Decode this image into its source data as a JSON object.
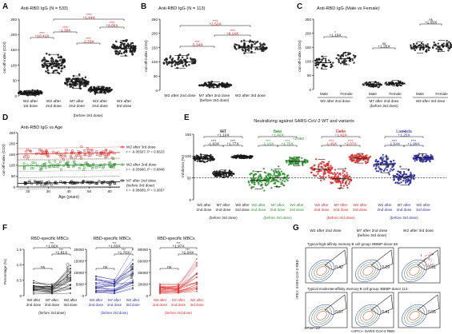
{
  "colors": {
    "black": "#1a1a1a",
    "gray": "#6e6e6e",
    "red": "#d92a2a",
    "green": "#2f8f2f",
    "blue": "#2b2b9a",
    "darkred": "#9c1c1c",
    "sig": "#c01010"
  },
  "panels": {
    "A": {
      "letter": "A",
      "title": "Anti-RBD IgG (N = 533)",
      "ylabel": "cut-off-index (COI)",
      "ticks": [
        "0",
        "50",
        "100",
        "150",
        "200",
        "250"
      ],
      "groups": [
        {
          "label": "W2 after\n1st dose"
        },
        {
          "label": "W2 after\n2nd dose"
        },
        {
          "label": "M7 after\n2nd dose"
        },
        {
          "label": "M7 after\n2nd dose\n(before 3rd dose)"
        },
        {
          "label": "W2 after\n3rd dose"
        }
      ],
      "x_footer": "(before 3rd dose)",
      "stats": [
        {
          "star": "****",
          "fold": "+10.41X"
        },
        {
          "star": "****",
          "fold": "-2.39X"
        },
        {
          "star": "****",
          "fold": "-2.33X"
        },
        {
          "star": "****",
          "fold": "+8.00X"
        },
        {
          "star": "****",
          "fold": "+1.44X"
        }
      ]
    },
    "B": {
      "letter": "B",
      "title": "Anti-RBD IgG (N = 113)",
      "ylabel": "cut-off-index (COI)",
      "ticks": [
        "0",
        "50",
        "100",
        "150",
        "200",
        "250"
      ],
      "groups": [
        {
          "label": "W2 after 2nd dose"
        },
        {
          "label": "M7 after 2nd dose\n(before 3rd dose)"
        },
        {
          "label": "W2 after 3rd dose"
        }
      ],
      "stats": [
        {
          "star": "****",
          "fold": "-5.34X"
        },
        {
          "star": "****",
          "fold": "+8.14X"
        },
        {
          "star": "****",
          "fold": "+1.52X"
        }
      ]
    },
    "C": {
      "letter": "C",
      "title": "Anti-RBD IgG (Male vs Female)",
      "ylabel": "cut-off-index (COI)",
      "ticks": [
        "0",
        "50",
        "100",
        "150",
        "200",
        "250"
      ],
      "sexes": [
        "Male",
        "Female",
        "Male",
        "Female",
        "Male",
        "Female"
      ],
      "groups": [
        {
          "label": "W2 after 2nd dose"
        },
        {
          "label": "M7 after 2nd dose\n(before 3rd dose)"
        },
        {
          "label": "W2 after 3rd dose"
        }
      ],
      "stats": [
        {
          "star": "*",
          "fold": "+1.19X"
        },
        {
          "star": "ns",
          "fold": "+1.25X"
        },
        {
          "star": "ns",
          "fold": "+1.05X"
        }
      ]
    },
    "D": {
      "letter": "D",
      "title": "Anti-RBD IgG vs Age",
      "ylabel": "cut-off-index (COI)",
      "xlabel": "Age (years)",
      "yticks": [
        "0",
        "50",
        "100",
        "150",
        "200",
        "250"
      ],
      "xticks": [
        "20",
        "30",
        "40",
        "50",
        "60"
      ],
      "legend": [
        {
          "series": "W2 after 3rd dose",
          "stat": "r = -0.05507, P = 0.5623"
        },
        {
          "series": "W2 after 2nd dose",
          "stat": "r = -0.03960, P = 0.6848"
        },
        {
          "series": "M7 after 2nd dose\n(before 3rd dose)",
          "stat": "r = -0.08689, P = 0.3657"
        }
      ]
    },
    "E": {
      "letter": "E",
      "title": "Neutralizing against SARS-CoV-2 WT and variants",
      "ylabel": "Inhibition (%)",
      "ticks": [
        "0",
        "50",
        "100",
        "150"
      ],
      "variants": [
        {
          "name": "WT",
          "stats": [
            "+1.10X",
            "-1.60X",
            "+1.77X"
          ]
        },
        {
          "name": "Beta",
          "stats": [
            "+1.40X",
            "-1.15X",
            "+1.75X",
            "+2.08X"
          ]
        },
        {
          "name": "Delta",
          "stats": [
            "+1.42X",
            "-1.45X",
            "+2.07X"
          ]
        },
        {
          "name": "Lambda",
          "stats": [
            "+1.25X",
            "-1.54X",
            "+1.99X"
          ]
        }
      ],
      "groups": [
        {
          "label": "W2 after\n2nd dose"
        },
        {
          "label": "M7 after\n2nd dose"
        },
        {
          "label": "W2 after\n3rd dose"
        }
      ],
      "x_footer": "(before 3rd dose)"
    },
    "F": {
      "letter": "F",
      "sub": [
        {
          "title": "RBD-specific MBCs",
          "ylabel": "Percentage (%)",
          "ticks": [
            "0",
            "0.5",
            "1.0",
            "1.5"
          ],
          "stats": [
            "ns",
            "+1.92X",
            "+1.81X"
          ]
        },
        {
          "title": "RBD-specific MBCs",
          "ylabel": "MFI (APC)",
          "ticks": [
            "0",
            "5000",
            "10000",
            "15000",
            "20000"
          ],
          "stats": [
            "ns",
            "+1.63X",
            "+1.76X"
          ]
        },
        {
          "title": "RBD-specific MBCs",
          "ylabel": "MFI (PE)",
          "ticks": [
            "0",
            "20000",
            "40000",
            "60000",
            "80000"
          ],
          "stats": [
            "ns",
            "+1.97X",
            "+2.04X"
          ]
        }
      ],
      "groups": [
        "W2 after\n2nd dose",
        "M7 after\n2nd dose",
        "W2 after\n3rd dose"
      ],
      "x_footer": "(before 3rd dose)"
    },
    "G": {
      "letter": "G",
      "cols": [
        "W2 after 2nd dose",
        "M7 after 2nd dose\n(before 3rd dose)",
        "W2 after 3rd dose"
      ],
      "row1_title": "Typical high-affinity memory B cell group: BBIBP-donor 68",
      "row2_title": "Typical moderate-affinity memory B cell group: BBIBP-donor 113",
      "row1_values": [
        "0.42",
        "0.29",
        "3.91"
      ],
      "row2_values": [
        "0.67",
        "0.41",
        "0.55"
      ],
      "ylabel": "<PE>: SARS-CoV-2 RBD",
      "xlabel": "<APC>: SARS-CoV-2 RBD",
      "tick_labels": [
        "10",
        "5",
        "0",
        "10³",
        "10⁴",
        "10⁵"
      ]
    }
  },
  "chart_data": [
    {
      "type": "scatter",
      "panel": "A",
      "title": "Anti-RBD IgG (N = 533)",
      "ylabel": "cut-off-index (COI)",
      "ylim": [
        0,
        250
      ],
      "categories": [
        "W2 after 1st dose",
        "W2 after 2nd dose",
        "M7 after 2nd dose",
        "M7 after 2nd dose (before 3rd dose)",
        "W2 after 3rd dose"
      ],
      "series": [
        {
          "values": [
            10,
            105,
            45,
            20,
            155
          ]
        }
      ]
    },
    {
      "type": "scatter",
      "panel": "B",
      "title": "Anti-RBD IgG (N = 113)",
      "ylabel": "cut-off-index (COI)",
      "ylim": [
        0,
        250
      ],
      "categories": [
        "W2 after 2nd dose",
        "M7 after 2nd dose (before 3rd dose)",
        "W2 after 3rd dose"
      ],
      "series": [
        {
          "values": [
            100,
            19,
            152
          ]
        }
      ]
    },
    {
      "type": "scatter",
      "panel": "C",
      "title": "Anti-RBD IgG (Male vs Female)",
      "ylabel": "cut-off-index (COI)",
      "ylim": [
        0,
        250
      ],
      "categories": [
        "W2 after 2nd dose Male",
        "W2 after 2nd dose Female",
        "M7 after 2nd dose Male",
        "M7 after 2nd dose Female",
        "W2 after 3rd dose Male",
        "W2 after 3rd dose Female"
      ],
      "series": [
        {
          "values": [
            95,
            110,
            18,
            22,
            150,
            155
          ]
        }
      ]
    },
    {
      "type": "scatter",
      "panel": "D",
      "title": "Anti-RBD IgG vs Age",
      "xlabel": "Age (years)",
      "ylabel": "cut-off-index (COI)",
      "xlim": [
        15,
        65
      ],
      "ylim": [
        0,
        250
      ],
      "series": [
        {
          "name": "W2 after 3rd dose",
          "level": 155
        },
        {
          "name": "W2 after 2nd dose",
          "level": 100
        },
        {
          "name": "M7 after 2nd dose (before 3rd dose)",
          "level": 20
        }
      ]
    },
    {
      "type": "scatter",
      "panel": "E",
      "title": "Neutralizing against SARS-CoV-2 WT and variants",
      "ylabel": "Inhibition (%)",
      "ylim": [
        0,
        150
      ],
      "series": [
        {
          "name": "WT",
          "values": [
            95,
            60,
            98
          ]
        },
        {
          "name": "Beta",
          "values": [
            45,
            50,
            88
          ]
        },
        {
          "name": "Delta",
          "values": [
            70,
            48,
            95
          ]
        },
        {
          "name": "Lambda",
          "values": [
            80,
            52,
            96
          ]
        }
      ]
    },
    {
      "type": "line",
      "panel": "F",
      "title": "RBD-specific MBCs",
      "categories": [
        "W2 after 2nd dose",
        "M7 after 2nd dose",
        "W2 after 3rd dose"
      ],
      "series": [
        {
          "name": "Percentage (%)",
          "values": [
            0.25,
            0.2,
            0.42
          ]
        },
        {
          "name": "MFI (APC)",
          "values": [
            4000,
            3500,
            7000
          ]
        },
        {
          "name": "MFI (PE)",
          "values": [
            12000,
            11000,
            23000
          ]
        }
      ]
    }
  ]
}
